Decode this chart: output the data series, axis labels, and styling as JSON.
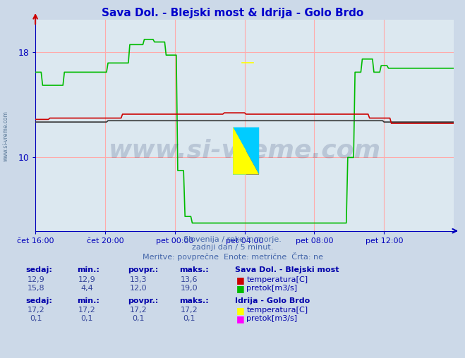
{
  "title": "Sava Dol. - Blejski most & Idrija - Golo Brdo",
  "title_color": "#0000cc",
  "bg_color": "#ccd9e8",
  "plot_bg_color": "#dce8f0",
  "grid_color": "#ffaaaa",
  "axis_color": "#0000bb",
  "tick_color": "#0000bb",
  "watermark_text": "www.si-vreme.com",
  "watermark_color": "#1a3060",
  "watermark_alpha": 0.18,
  "subtitle_color": "#4466aa",
  "subtitle1": "Slovenija / reke in morje.",
  "subtitle2": "zadnji dan / 5 minut.",
  "subtitle3": "Meritve: povprečne  Enote: metrične  Črta: ne",
  "ylim": [
    4.4,
    20.5
  ],
  "yticks": [
    10,
    18
  ],
  "xlim": [
    0,
    288
  ],
  "xtick_positions": [
    0,
    48,
    96,
    144,
    192,
    240
  ],
  "xtick_labels": [
    "čet 16:00",
    "čet 20:00",
    "pet 00:00",
    "pet 04:00",
    "pet 08:00",
    "pet 12:00"
  ],
  "sava_temp_color": "#cc0000",
  "sava_pretok_color": "#00bb00",
  "sava_black_color": "#333333",
  "idrija_temp_color": "#ffff00",
  "idrija_pretok_color": "#ff00ff",
  "logo_yellow": "#ffff00",
  "logo_cyan": "#00ccff",
  "logo_blue": "#0000cc",
  "station1": "Sava Dol. - Blejski most",
  "s1_sedaj": "12,9",
  "s1_min": "12,9",
  "s1_povpr": "13,3",
  "s1_maks": "13,6",
  "s1_sedaj2": "15,8",
  "s1_min2": "4,4",
  "s1_povpr2": "12,0",
  "s1_maks2": "19,0",
  "station2": "Idrija - Golo Brdo",
  "s2_sedaj": "17,2",
  "s2_min": "17,2",
  "s2_povpr": "17,2",
  "s2_maks": "17,2",
  "s2_sedaj2": "0,1",
  "s2_min2": "0,1",
  "s2_povpr2": "0,1",
  "s2_maks2": "0,1",
  "legend_label_color": "#0000aa",
  "legend_val_color": "#334499"
}
